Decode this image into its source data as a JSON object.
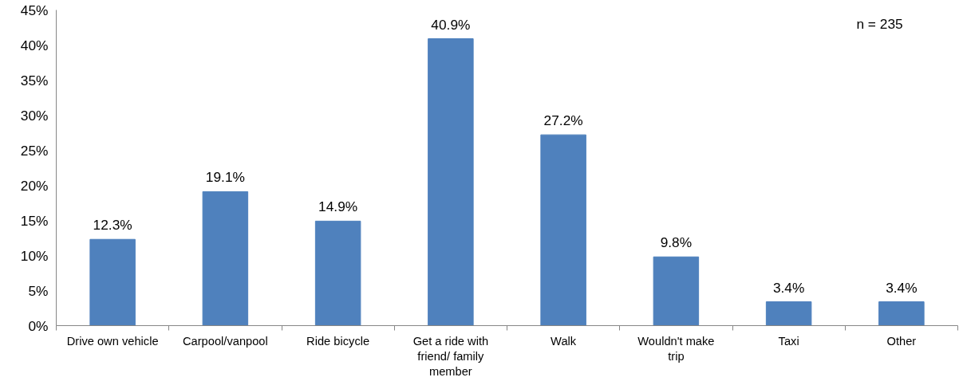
{
  "chart_data": {
    "type": "bar",
    "categories": [
      "Drive own vehicle",
      "Carpool/vanpool",
      "Ride bicycle",
      "Get a ride with friend/ family member",
      "Walk",
      "Wouldn't make trip",
      "Taxi",
      "Other"
    ],
    "values": [
      12.3,
      19.1,
      14.9,
      40.9,
      27.2,
      9.8,
      3.4,
      3.4
    ],
    "value_labels": [
      "12.3%",
      "19.1%",
      "14.9%",
      "40.9%",
      "27.2%",
      "9.8%",
      "3.4%",
      "3.4%"
    ],
    "color": "#4f81bd",
    "ylim": [
      0,
      45
    ],
    "yticks": [
      {
        "value": 0,
        "label": "0%"
      },
      {
        "value": 5,
        "label": "5%"
      },
      {
        "value": 10,
        "label": "10%"
      },
      {
        "value": 15,
        "label": "15%"
      },
      {
        "value": 20,
        "label": "20%"
      },
      {
        "value": 25,
        "label": "25%"
      },
      {
        "value": 30,
        "label": "30%"
      },
      {
        "value": 35,
        "label": "35%"
      },
      {
        "value": 40,
        "label": "40%"
      },
      {
        "value": 45,
        "label": "45%"
      }
    ],
    "annotations": [
      "n = 235"
    ],
    "grid": false
  }
}
